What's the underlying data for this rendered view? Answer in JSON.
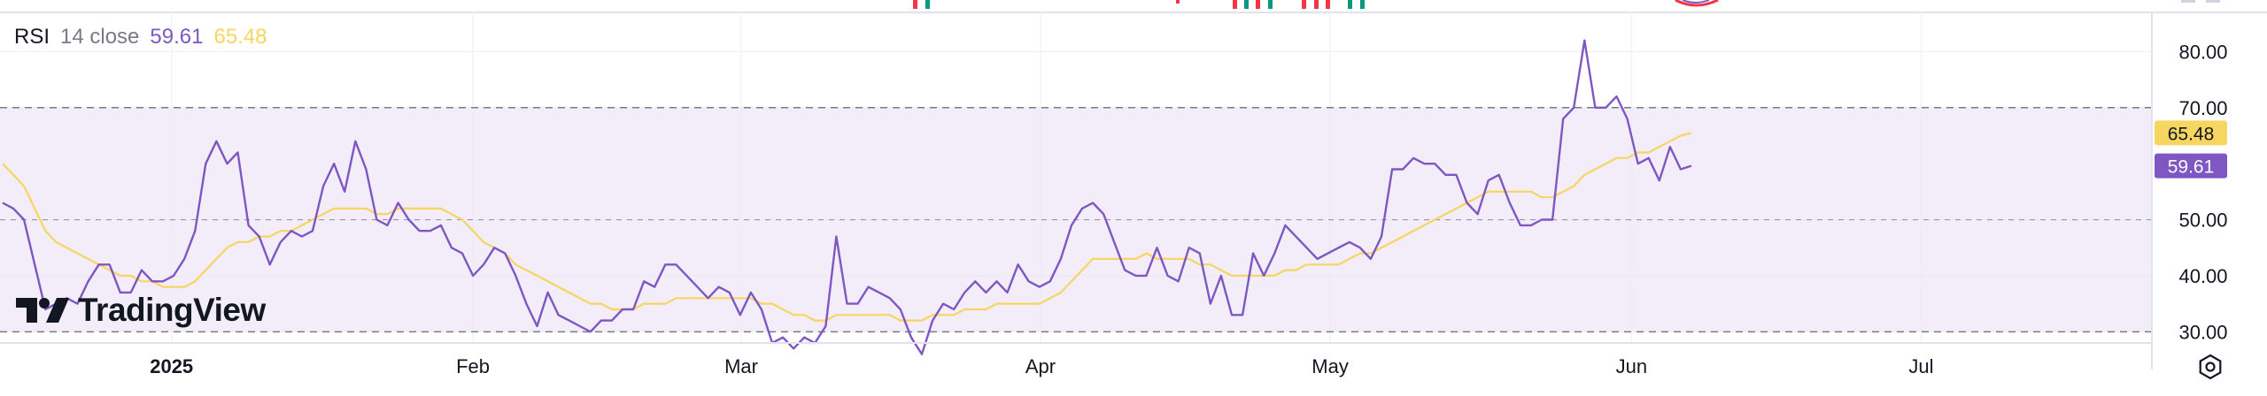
{
  "indicator": {
    "name": "RSI",
    "params": "14 close",
    "rsi_value": "59.61",
    "ma_value": "65.48"
  },
  "brand": {
    "name": "TradingView"
  },
  "colors": {
    "rsi": "#7e57c2",
    "ma": "#f7d561",
    "band": "#ede7f6",
    "grid": "#f0f3fa",
    "text": "#131722"
  },
  "chart_data": {
    "type": "line",
    "y_ticks": [
      "80.00",
      "70.00",
      "50.00",
      "40.00",
      "30.00"
    ],
    "ylim": [
      28,
      87
    ],
    "xlim": [
      0,
      190
    ],
    "x_labels": [
      {
        "label": "2025",
        "pos": 15.8,
        "bold": true
      },
      {
        "label": "Feb",
        "pos": 44,
        "bold": false
      },
      {
        "label": "Mar",
        "pos": 69.1,
        "bold": false
      },
      {
        "label": "Apr",
        "pos": 97.1,
        "bold": false
      },
      {
        "label": "May",
        "pos": 124.2,
        "bold": false
      },
      {
        "label": "Jun",
        "pos": 152.4,
        "bold": false
      },
      {
        "label": "Jul",
        "pos": 179.5,
        "bold": false
      }
    ],
    "bands": {
      "upper": 70,
      "middle": 50,
      "lower": 30
    },
    "series": [
      {
        "name": "RSI",
        "values": [
          [
            0,
            53
          ],
          [
            1,
            52
          ],
          [
            2,
            50
          ],
          [
            3,
            42
          ],
          [
            4,
            34
          ],
          [
            5,
            35
          ],
          [
            6,
            36
          ],
          [
            7,
            35
          ],
          [
            8,
            39
          ],
          [
            9,
            42
          ],
          [
            10,
            42
          ],
          [
            11,
            37
          ],
          [
            12,
            37
          ],
          [
            13,
            41
          ],
          [
            14,
            39
          ],
          [
            15,
            39
          ],
          [
            16,
            40
          ],
          [
            17,
            43
          ],
          [
            18,
            48
          ],
          [
            19,
            60
          ],
          [
            20,
            64
          ],
          [
            21,
            60
          ],
          [
            22,
            62
          ],
          [
            23,
            49
          ],
          [
            24,
            47
          ],
          [
            25,
            42
          ],
          [
            26,
            46
          ],
          [
            27,
            48
          ],
          [
            28,
            47
          ],
          [
            29,
            48
          ],
          [
            30,
            56
          ],
          [
            31,
            60
          ],
          [
            32,
            55
          ],
          [
            33,
            64
          ],
          [
            34,
            59
          ],
          [
            35,
            50
          ],
          [
            36,
            49
          ],
          [
            37,
            53
          ],
          [
            38,
            50
          ],
          [
            39,
            48
          ],
          [
            40,
            48
          ],
          [
            41,
            49
          ],
          [
            42,
            45
          ],
          [
            43,
            44
          ],
          [
            44,
            40
          ],
          [
            45,
            42
          ],
          [
            46,
            45
          ],
          [
            47,
            44
          ],
          [
            48,
            40
          ],
          [
            49,
            35
          ],
          [
            50,
            31
          ],
          [
            51,
            37
          ],
          [
            52,
            33
          ],
          [
            53,
            32
          ],
          [
            54,
            31
          ],
          [
            55,
            30
          ],
          [
            56,
            32
          ],
          [
            57,
            32
          ],
          [
            58,
            34
          ],
          [
            59,
            34
          ],
          [
            60,
            39
          ],
          [
            61,
            38
          ],
          [
            62,
            42
          ],
          [
            63,
            42
          ],
          [
            64,
            40
          ],
          [
            65,
            38
          ],
          [
            66,
            36
          ],
          [
            67,
            38
          ],
          [
            68,
            37
          ],
          [
            69,
            33
          ],
          [
            70,
            37
          ],
          [
            71,
            34
          ],
          [
            72,
            28
          ],
          [
            73,
            29
          ],
          [
            74,
            27
          ],
          [
            75,
            29
          ],
          [
            76,
            28
          ],
          [
            77,
            31
          ],
          [
            78,
            47
          ],
          [
            79,
            35
          ],
          [
            80,
            35
          ],
          [
            81,
            38
          ],
          [
            82,
            37
          ],
          [
            83,
            36
          ],
          [
            84,
            34
          ],
          [
            85,
            29
          ],
          [
            86,
            26
          ],
          [
            87,
            32
          ],
          [
            88,
            35
          ],
          [
            89,
            34
          ],
          [
            90,
            37
          ],
          [
            91,
            39
          ],
          [
            92,
            37
          ],
          [
            93,
            39
          ],
          [
            94,
            37
          ],
          [
            95,
            42
          ],
          [
            96,
            39
          ],
          [
            97,
            38
          ],
          [
            98,
            39
          ],
          [
            99,
            43
          ],
          [
            100,
            49
          ],
          [
            101,
            52
          ],
          [
            102,
            53
          ],
          [
            103,
            51
          ],
          [
            104,
            46
          ],
          [
            105,
            41
          ],
          [
            106,
            40
          ],
          [
            107,
            40
          ],
          [
            108,
            45
          ],
          [
            109,
            40
          ],
          [
            110,
            39
          ],
          [
            111,
            45
          ],
          [
            112,
            44
          ],
          [
            113,
            35
          ],
          [
            114,
            40
          ],
          [
            115,
            33
          ],
          [
            116,
            33
          ],
          [
            117,
            44
          ],
          [
            118,
            40
          ],
          [
            119,
            44
          ],
          [
            120,
            49
          ],
          [
            121,
            47
          ],
          [
            122,
            45
          ],
          [
            123,
            43
          ],
          [
            124,
            44
          ],
          [
            125,
            45
          ],
          [
            126,
            46
          ],
          [
            127,
            45
          ],
          [
            128,
            43
          ],
          [
            129,
            47
          ],
          [
            130,
            59
          ],
          [
            131,
            59
          ],
          [
            132,
            61
          ],
          [
            133,
            60
          ],
          [
            134,
            60
          ],
          [
            135,
            58
          ],
          [
            136,
            58
          ],
          [
            137,
            53
          ],
          [
            138,
            51
          ],
          [
            139,
            57
          ],
          [
            140,
            58
          ],
          [
            141,
            53
          ],
          [
            142,
            49
          ],
          [
            143,
            49
          ],
          [
            144,
            50
          ],
          [
            145,
            50
          ],
          [
            146,
            68
          ],
          [
            147,
            70
          ],
          [
            148,
            82
          ],
          [
            149,
            70
          ],
          [
            150,
            70
          ],
          [
            151,
            72
          ],
          [
            152,
            68
          ],
          [
            153,
            60
          ],
          [
            154,
            61
          ],
          [
            155,
            57
          ],
          [
            156,
            63
          ],
          [
            157,
            59
          ],
          [
            158,
            59.61
          ]
        ]
      },
      {
        "name": "MA",
        "values": [
          [
            0,
            60
          ],
          [
            1,
            58
          ],
          [
            2,
            56
          ],
          [
            3,
            52
          ],
          [
            4,
            48
          ],
          [
            5,
            46
          ],
          [
            6,
            45
          ],
          [
            7,
            44
          ],
          [
            8,
            43
          ],
          [
            9,
            42
          ],
          [
            10,
            41
          ],
          [
            11,
            40
          ],
          [
            12,
            40
          ],
          [
            13,
            39
          ],
          [
            14,
            39
          ],
          [
            15,
            38
          ],
          [
            16,
            38
          ],
          [
            17,
            38
          ],
          [
            18,
            39
          ],
          [
            19,
            41
          ],
          [
            20,
            43
          ],
          [
            21,
            45
          ],
          [
            22,
            46
          ],
          [
            23,
            46
          ],
          [
            24,
            47
          ],
          [
            25,
            47
          ],
          [
            26,
            48
          ],
          [
            27,
            48
          ],
          [
            28,
            49
          ],
          [
            29,
            50
          ],
          [
            30,
            51
          ],
          [
            31,
            52
          ],
          [
            32,
            52
          ],
          [
            33,
            52
          ],
          [
            34,
            52
          ],
          [
            35,
            51
          ],
          [
            36,
            51
          ],
          [
            37,
            52
          ],
          [
            38,
            52
          ],
          [
            39,
            52
          ],
          [
            40,
            52
          ],
          [
            41,
            52
          ],
          [
            42,
            51
          ],
          [
            43,
            50
          ],
          [
            44,
            48
          ],
          [
            45,
            46
          ],
          [
            46,
            45
          ],
          [
            47,
            44
          ],
          [
            48,
            42
          ],
          [
            49,
            41
          ],
          [
            50,
            40
          ],
          [
            51,
            39
          ],
          [
            52,
            38
          ],
          [
            53,
            37
          ],
          [
            54,
            36
          ],
          [
            55,
            35
          ],
          [
            56,
            35
          ],
          [
            57,
            34
          ],
          [
            58,
            34
          ],
          [
            59,
            34
          ],
          [
            60,
            35
          ],
          [
            61,
            35
          ],
          [
            62,
            35
          ],
          [
            63,
            36
          ],
          [
            64,
            36
          ],
          [
            65,
            36
          ],
          [
            66,
            36
          ],
          [
            67,
            36
          ],
          [
            68,
            36
          ],
          [
            69,
            36
          ],
          [
            70,
            36
          ],
          [
            71,
            35
          ],
          [
            72,
            35
          ],
          [
            73,
            34
          ],
          [
            74,
            33
          ],
          [
            75,
            33
          ],
          [
            76,
            32
          ],
          [
            77,
            32
          ],
          [
            78,
            33
          ],
          [
            79,
            33
          ],
          [
            80,
            33
          ],
          [
            81,
            33
          ],
          [
            82,
            33
          ],
          [
            83,
            33
          ],
          [
            84,
            32
          ],
          [
            85,
            32
          ],
          [
            86,
            32
          ],
          [
            87,
            33
          ],
          [
            88,
            33
          ],
          [
            89,
            33
          ],
          [
            90,
            34
          ],
          [
            91,
            34
          ],
          [
            92,
            34
          ],
          [
            93,
            35
          ],
          [
            94,
            35
          ],
          [
            95,
            35
          ],
          [
            96,
            35
          ],
          [
            97,
            35
          ],
          [
            98,
            36
          ],
          [
            99,
            37
          ],
          [
            100,
            39
          ],
          [
            101,
            41
          ],
          [
            102,
            43
          ],
          [
            103,
            43
          ],
          [
            104,
            43
          ],
          [
            105,
            43
          ],
          [
            106,
            43
          ],
          [
            107,
            44
          ],
          [
            108,
            43
          ],
          [
            109,
            43
          ],
          [
            110,
            43
          ],
          [
            111,
            43
          ],
          [
            112,
            42
          ],
          [
            113,
            42
          ],
          [
            114,
            41
          ],
          [
            115,
            40
          ],
          [
            116,
            40
          ],
          [
            117,
            40
          ],
          [
            118,
            40
          ],
          [
            119,
            40
          ],
          [
            120,
            41
          ],
          [
            121,
            41
          ],
          [
            122,
            42
          ],
          [
            123,
            42
          ],
          [
            124,
            42
          ],
          [
            125,
            42
          ],
          [
            126,
            43
          ],
          [
            127,
            44
          ],
          [
            128,
            44
          ],
          [
            129,
            45
          ],
          [
            130,
            46
          ],
          [
            131,
            47
          ],
          [
            132,
            48
          ],
          [
            133,
            49
          ],
          [
            134,
            50
          ],
          [
            135,
            51
          ],
          [
            136,
            52
          ],
          [
            137,
            53
          ],
          [
            138,
            54
          ],
          [
            139,
            55
          ],
          [
            140,
            55
          ],
          [
            141,
            55
          ],
          [
            142,
            55
          ],
          [
            143,
            55
          ],
          [
            144,
            54
          ],
          [
            145,
            54
          ],
          [
            146,
            55
          ],
          [
            147,
            56
          ],
          [
            148,
            58
          ],
          [
            149,
            59
          ],
          [
            150,
            60
          ],
          [
            151,
            61
          ],
          [
            152,
            61
          ],
          [
            153,
            62
          ],
          [
            154,
            62
          ],
          [
            155,
            63
          ],
          [
            156,
            64
          ],
          [
            157,
            65
          ],
          [
            158,
            65.48
          ]
        ]
      }
    ]
  }
}
